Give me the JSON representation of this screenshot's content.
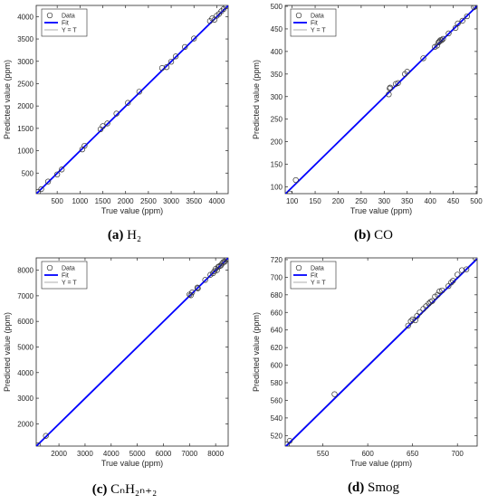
{
  "captions": [
    {
      "prefix": "(a)",
      "label": "H₂"
    },
    {
      "prefix": "(b)",
      "label": "CO"
    },
    {
      "prefix": "(c)",
      "label": "CₙH₂ₙ₊₂"
    },
    {
      "prefix": "(d)",
      "label": "Smog"
    }
  ],
  "legend_labels": [
    "Data",
    "Fit",
    "Y = T"
  ],
  "colors": {
    "fit": "#0000ff",
    "identity": "#9a9a9a",
    "data": "#333333"
  },
  "chart_data": [
    {
      "type": "scatter",
      "xlabel": "True value (ppm)",
      "ylabel": "Predicted value (ppm)",
      "xlim": [
        40,
        4250
      ],
      "ylim": [
        40,
        4250
      ],
      "xticks": [
        500,
        1000,
        1500,
        2000,
        2500,
        3000,
        3500,
        4000
      ],
      "yticks": [
        500,
        1000,
        1500,
        2000,
        2500,
        3000,
        3500,
        4000
      ],
      "legend_position": "top-left",
      "series": [
        {
          "name": "Data",
          "points": [
            [
              80,
              80
            ],
            [
              150,
              140
            ],
            [
              300,
              310
            ],
            [
              500,
              470
            ],
            [
              600,
              580
            ],
            [
              1050,
              1030
            ],
            [
              1100,
              1110
            ],
            [
              1450,
              1480
            ],
            [
              1500,
              1550
            ],
            [
              1600,
              1610
            ],
            [
              1800,
              1830
            ],
            [
              2050,
              2070
            ],
            [
              2300,
              2320
            ],
            [
              2800,
              2850
            ],
            [
              2900,
              2870
            ],
            [
              3000,
              2990
            ],
            [
              3100,
              3110
            ],
            [
              3300,
              3320
            ],
            [
              3500,
              3510
            ],
            [
              3850,
              3900
            ],
            [
              3900,
              3960
            ],
            [
              3950,
              3930
            ],
            [
              4000,
              4020
            ],
            [
              4050,
              4060
            ],
            [
              4100,
              4120
            ],
            [
              4150,
              4170
            ],
            [
              4200,
              4230
            ]
          ]
        },
        {
          "name": "Fit",
          "line": [
            [
              40,
              35
            ],
            [
              4250,
              4245
            ]
          ]
        },
        {
          "name": "Y = T",
          "line": [
            [
              40,
              40
            ],
            [
              4250,
              4250
            ]
          ]
        }
      ]
    },
    {
      "type": "scatter",
      "xlabel": "True value (ppm)",
      "ylabel": "Predicted value (ppm)",
      "xlim": [
        85,
        502
      ],
      "ylim": [
        85,
        502
      ],
      "xticks": [
        100,
        150,
        200,
        250,
        300,
        350,
        400,
        450,
        500
      ],
      "yticks": [
        100,
        150,
        200,
        250,
        300,
        350,
        400,
        450,
        500
      ],
      "legend_position": "top-left",
      "series": [
        {
          "name": "Data",
          "points": [
            [
              95,
              85
            ],
            [
              108,
              115
            ],
            [
              310,
              305
            ],
            [
              312,
              318
            ],
            [
              313,
              320
            ],
            [
              325,
              328
            ],
            [
              330,
              330
            ],
            [
              345,
              350
            ],
            [
              350,
              355
            ],
            [
              385,
              385
            ],
            [
              410,
              410
            ],
            [
              415,
              413
            ],
            [
              418,
              420
            ],
            [
              420,
              422
            ],
            [
              422,
              425
            ],
            [
              425,
              425
            ],
            [
              428,
              428
            ],
            [
              440,
              440
            ],
            [
              455,
              452
            ],
            [
              460,
              462
            ],
            [
              470,
              468
            ],
            [
              480,
              478
            ],
            [
              495,
              498
            ],
            [
              498,
              500
            ]
          ]
        },
        {
          "name": "Fit",
          "line": [
            [
              85,
              84
            ],
            [
              502,
              501
            ]
          ]
        },
        {
          "name": "Y = T",
          "line": [
            [
              85,
              85
            ],
            [
              502,
              502
            ]
          ]
        }
      ]
    },
    {
      "type": "scatter",
      "xlabel": "True value (ppm)",
      "ylabel": "Predicted value (ppm)",
      "xlim": [
        1130,
        8480
      ],
      "ylim": [
        1130,
        8480
      ],
      "xticks": [
        2000,
        3000,
        4000,
        5000,
        6000,
        7000,
        8000
      ],
      "yticks": [
        2000,
        3000,
        4000,
        5000,
        6000,
        7000,
        8000
      ],
      "legend_position": "top-left",
      "series": [
        {
          "name": "Data",
          "points": [
            [
              1200,
              1160
            ],
            [
              1500,
              1530
            ],
            [
              7000,
              7050
            ],
            [
              7050,
              7020
            ],
            [
              7100,
              7130
            ],
            [
              7300,
              7320
            ],
            [
              7320,
              7290
            ],
            [
              7600,
              7620
            ],
            [
              7800,
              7820
            ],
            [
              7900,
              7880
            ],
            [
              7950,
              7960
            ],
            [
              8000,
              8050
            ],
            [
              8050,
              8000
            ],
            [
              8100,
              8130
            ],
            [
              8150,
              8160
            ],
            [
              8200,
              8180
            ],
            [
              8250,
              8260
            ],
            [
              8300,
              8320
            ],
            [
              8350,
              8330
            ],
            [
              8400,
              8420
            ],
            [
              8450,
              8460
            ]
          ]
        },
        {
          "name": "Fit",
          "line": [
            [
              1130,
              1125
            ],
            [
              8480,
              8475
            ]
          ]
        },
        {
          "name": "Y = T",
          "line": [
            [
              1130,
              1130
            ],
            [
              8480,
              8480
            ]
          ]
        }
      ]
    },
    {
      "type": "scatter",
      "xlabel": "True value (ppm)",
      "ylabel": "Predicted value (ppm)",
      "xlim": [
        508,
        722
      ],
      "ylim": [
        508,
        722
      ],
      "xticks": [
        550,
        600,
        650,
        700
      ],
      "yticks": [
        520,
        540,
        560,
        580,
        600,
        620,
        640,
        660,
        680,
        700,
        720
      ],
      "legend_position": "top-left",
      "series": [
        {
          "name": "Data",
          "points": [
            [
              510,
              510
            ],
            [
              513,
              514
            ],
            [
              563,
              567
            ],
            [
              645,
              645
            ],
            [
              648,
              650
            ],
            [
              650,
              652
            ],
            [
              653,
              651
            ],
            [
              655,
              656
            ],
            [
              658,
              660
            ],
            [
              662,
              664
            ],
            [
              665,
              667
            ],
            [
              668,
              670
            ],
            [
              670,
              672
            ],
            [
              672,
              673
            ],
            [
              675,
              678
            ],
            [
              678,
              680
            ],
            [
              680,
              684
            ],
            [
              683,
              685
            ],
            [
              690,
              690
            ],
            [
              693,
              694
            ],
            [
              695,
              696
            ],
            [
              700,
              703
            ],
            [
              705,
              708
            ],
            [
              710,
              709
            ],
            [
              720,
              722
            ]
          ]
        },
        {
          "name": "Fit",
          "line": [
            [
              508,
              507
            ],
            [
              722,
              721
            ]
          ]
        },
        {
          "name": "Y = T",
          "line": [
            [
              508,
              508
            ],
            [
              722,
              722
            ]
          ]
        }
      ]
    }
  ]
}
